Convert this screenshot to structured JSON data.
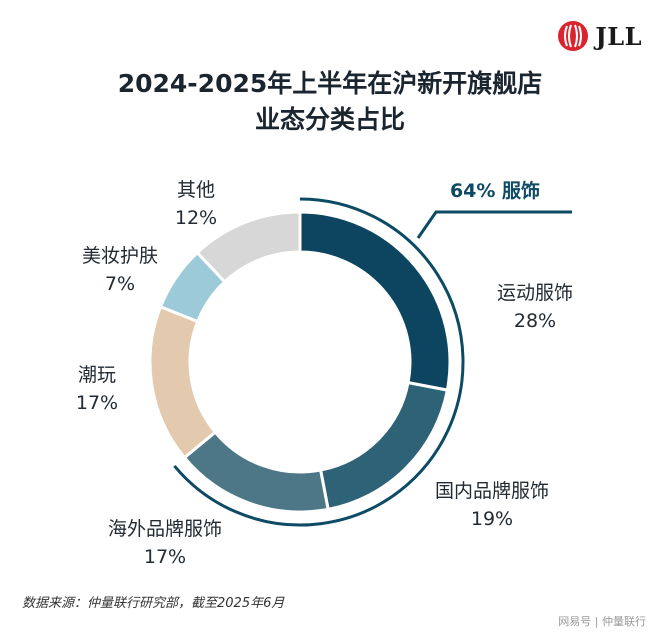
{
  "logo": {
    "text": "JLL"
  },
  "title": {
    "line1": "2024-2025年上半年在沪新开旗舰店",
    "line2": "业态分类占比"
  },
  "chart_data": {
    "type": "pie",
    "variant": "donut",
    "unit": "%",
    "slices": [
      {
        "label": "运动服饰",
        "value": 28,
        "display": "28%",
        "color": "#0d4560"
      },
      {
        "label": "国内品牌服饰",
        "value": 19,
        "display": "19%",
        "color": "#2e6276"
      },
      {
        "label": "海外品牌服饰",
        "value": 17,
        "display": "17%",
        "color": "#4d7687"
      },
      {
        "label": "潮玩",
        "value": 17,
        "display": "17%",
        "color": "#e3c9ae"
      },
      {
        "label": "美妆护肤",
        "value": 7,
        "display": "7%",
        "color": "#9ccad8"
      },
      {
        "label": "其他",
        "value": 12,
        "display": "12%",
        "color": "#d7d7d7"
      }
    ],
    "group_annotation": {
      "text": "64%  服饰",
      "covers": [
        "运动服饰",
        "国内品牌服饰",
        "海外品牌服饰"
      ]
    },
    "highlight_color": "#0d4a63"
  },
  "source": "数据来源：仲量联行研究部，截至2025年6月",
  "watermark": "网易号 | 仲量联行"
}
